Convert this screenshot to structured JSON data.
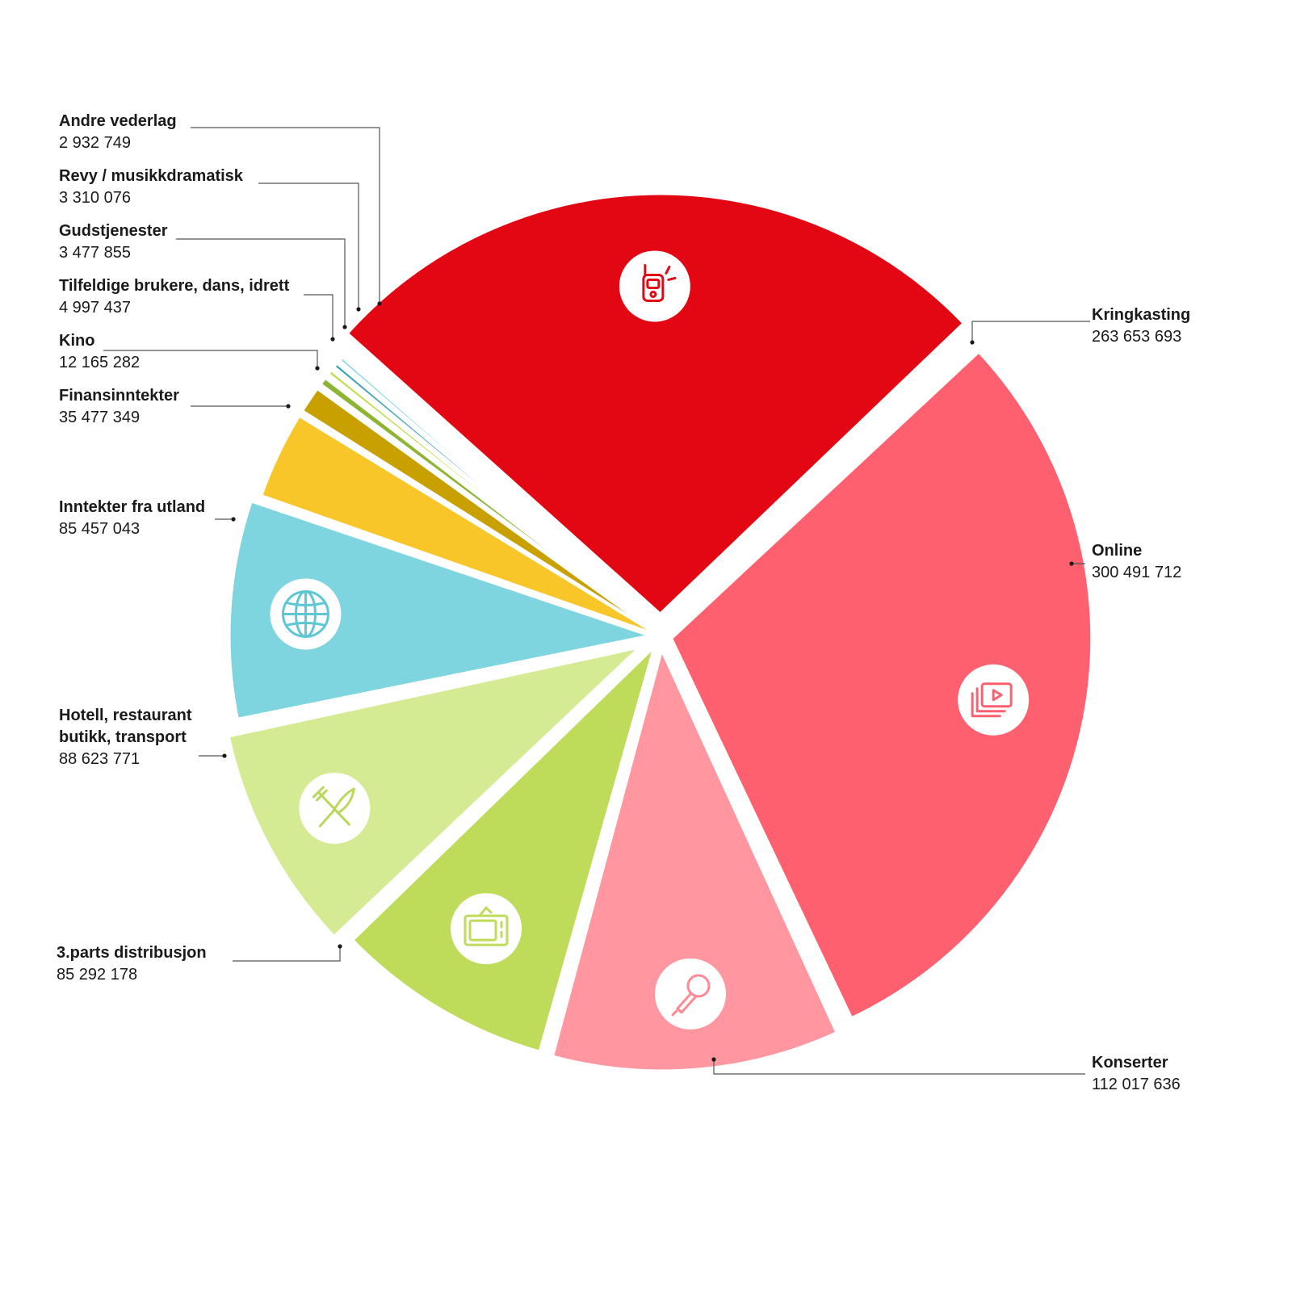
{
  "chart_data": {
    "type": "pie",
    "title": "",
    "slices": [
      {
        "name": "Kringkasting",
        "value": 263653693,
        "label": "263 653 693",
        "color": "#e30613",
        "icon": "radio-icon"
      },
      {
        "name": "Online",
        "value": 300491712,
        "label": "300 491 712",
        "color": "#ff6070",
        "icon": "video-play-icon"
      },
      {
        "name": "Konserter",
        "value": 112017636,
        "label": "112 017 636",
        "color": "#ff96a0",
        "icon": "microphone-icon"
      },
      {
        "name": "3.parts distribusjon",
        "value": 85292178,
        "label": "85 292 178",
        "color": "#bedb5a",
        "icon": "tv-icon"
      },
      {
        "name": "Hotell, restaurant butikk, transport",
        "name_lines": [
          "Hotell, restaurant",
          "butikk, transport"
        ],
        "value": 88623771,
        "label": "88 623 771",
        "color": "#d4eb94",
        "icon": "cutlery-icon"
      },
      {
        "name": "Inntekter fra utland",
        "value": 85457043,
        "label": "85 457 043",
        "color": "#7fd5df",
        "icon": "globe-icon"
      },
      {
        "name": "Finansinntekter",
        "value": 35477349,
        "label": "35 477 349",
        "color": "#f9c62a",
        "icon": ""
      },
      {
        "name": "Kino",
        "value": 12165282,
        "label": "12 165 282",
        "color": "#c8a000",
        "icon": ""
      },
      {
        "name": "Tilfeldige brukere, dans, idrett",
        "value": 4997437,
        "label": "4 997 437",
        "color": "#8db533",
        "icon": ""
      },
      {
        "name": "Gudstjenester",
        "value": 3477855,
        "label": "3 477 855",
        "color": "#c3df57",
        "icon": ""
      },
      {
        "name": "Revy / musikkdramatisk",
        "value": 3310076,
        "label": "3 310 076",
        "color": "#3fa7b4",
        "icon": ""
      },
      {
        "name": "Andre vederlag",
        "value": 2932749,
        "label": "2 932 749",
        "color": "#8ed9e4",
        "icon": ""
      }
    ],
    "legend": "none"
  }
}
